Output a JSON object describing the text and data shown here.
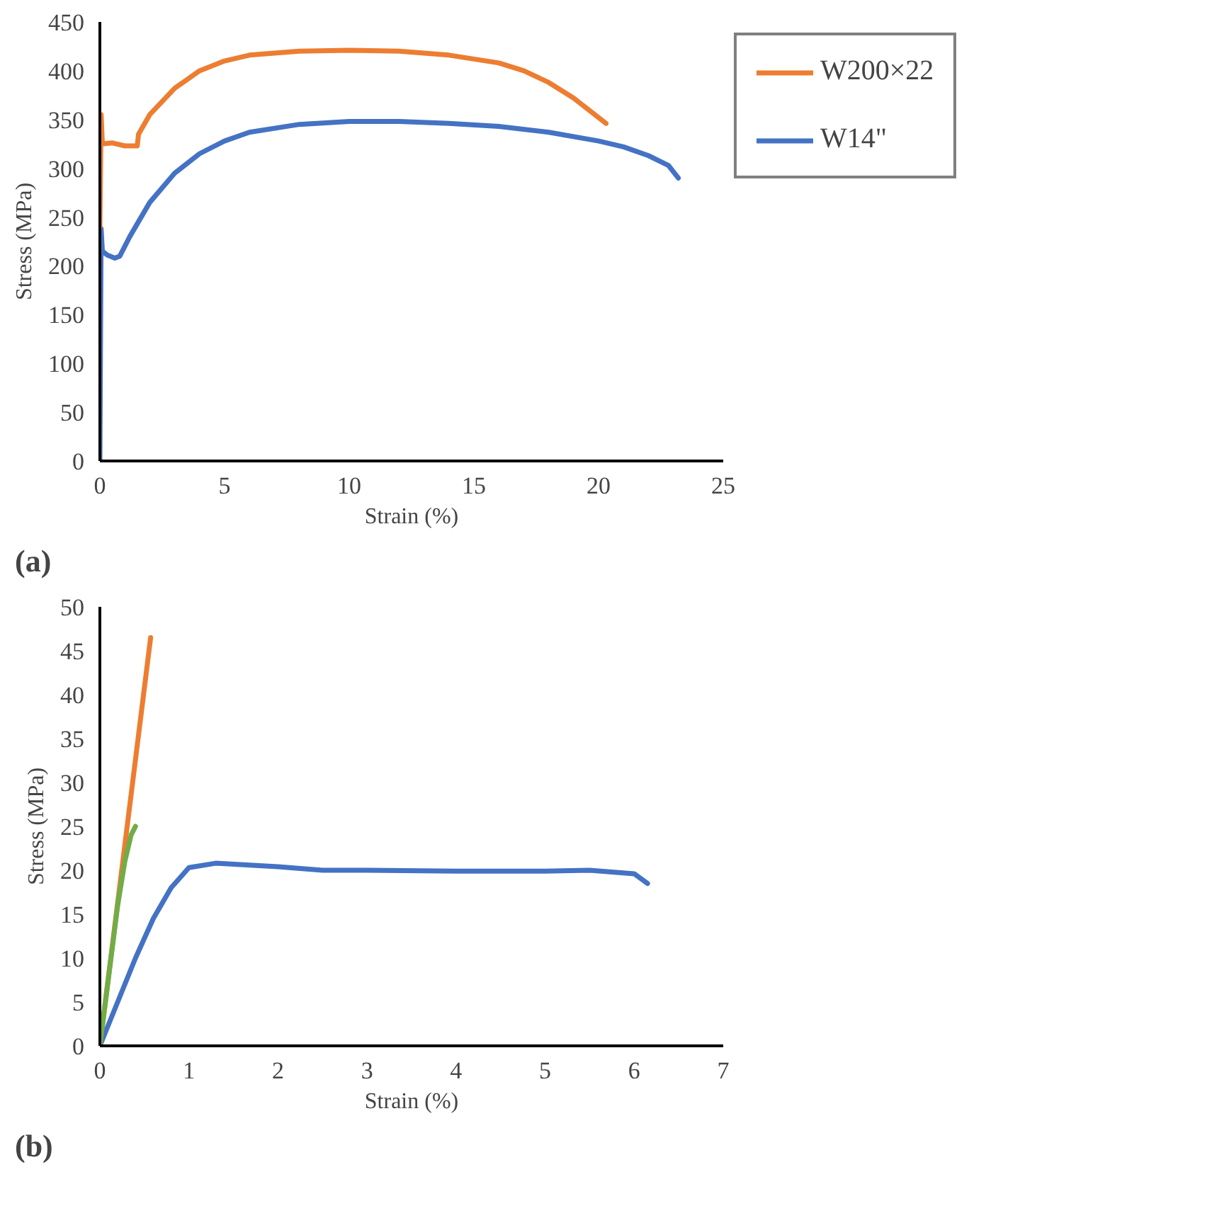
{
  "chart_data": [
    {
      "type": "line",
      "xlabel": "Strain (%)",
      "ylabel": "Stress (MPa)",
      "xlim": [
        0,
        25
      ],
      "ylim": [
        0,
        450
      ],
      "xticks": [
        0,
        5,
        10,
        15,
        20,
        25
      ],
      "yticks": [
        0,
        50,
        100,
        150,
        200,
        250,
        300,
        350,
        400,
        450
      ],
      "grid": false,
      "legend": "top right",
      "annotations": [
        "(a)"
      ],
      "series": [
        {
          "name": "W200×22",
          "color": "#ed7d31",
          "x": [
            0,
            0.05,
            0.1,
            0.5,
            1.0,
            1.5,
            1.55,
            2,
            3,
            4,
            5,
            6,
            8,
            10,
            12,
            14,
            16,
            17,
            18,
            19,
            20,
            20.3
          ],
          "values": [
            240,
            355,
            325,
            326,
            323,
            323,
            335,
            355,
            382,
            400,
            410,
            416,
            420,
            421,
            420,
            416,
            408,
            400,
            388,
            372,
            352,
            346
          ]
        },
        {
          "name": "W14\"",
          "color": "#4472c4",
          "x": [
            0,
            0.02,
            0.05,
            0.1,
            0.3,
            0.6,
            0.8,
            1.2,
            2,
            3,
            4,
            5,
            6,
            8,
            10,
            12,
            14,
            16,
            18,
            20,
            21,
            22,
            22.8,
            23.2
          ],
          "values": [
            0,
            100,
            238,
            215,
            211,
            208,
            210,
            230,
            265,
            295,
            315,
            328,
            337,
            345,
            348,
            348,
            346,
            343,
            337,
            328,
            322,
            313,
            303,
            290
          ]
        }
      ]
    },
    {
      "type": "line",
      "xlabel": "Strain (%)",
      "ylabel": "Stress (MPa)",
      "xlim": [
        0,
        7
      ],
      "ylim": [
        0,
        50
      ],
      "xticks": [
        0,
        1,
        2,
        3,
        4,
        5,
        6,
        7
      ],
      "yticks": [
        0,
        5,
        10,
        15,
        20,
        25,
        30,
        35,
        40,
        45,
        50
      ],
      "grid": false,
      "annotations": [
        "(b)"
      ],
      "series": [
        {
          "color": "#70ad47",
          "x": [
            0,
            0.1,
            0.2,
            0.28,
            0.35,
            0.4
          ],
          "values": [
            0,
            8,
            16,
            21,
            24,
            25
          ]
        },
        {
          "color": "#4472c4",
          "x": [
            0,
            0.2,
            0.4,
            0.6,
            0.8,
            1,
            1.3,
            2,
            2.5,
            3,
            4,
            5,
            5.5,
            6,
            6.15
          ],
          "values": [
            0,
            5,
            10,
            14.5,
            18,
            20.3,
            20.8,
            20.4,
            20,
            20,
            19.9,
            19.9,
            20,
            19.6,
            18.5
          ]
        },
        {
          "color": "#ed7d31",
          "x": [
            0,
            0.57
          ],
          "values": [
            0,
            46.5
          ]
        }
      ]
    }
  ]
}
